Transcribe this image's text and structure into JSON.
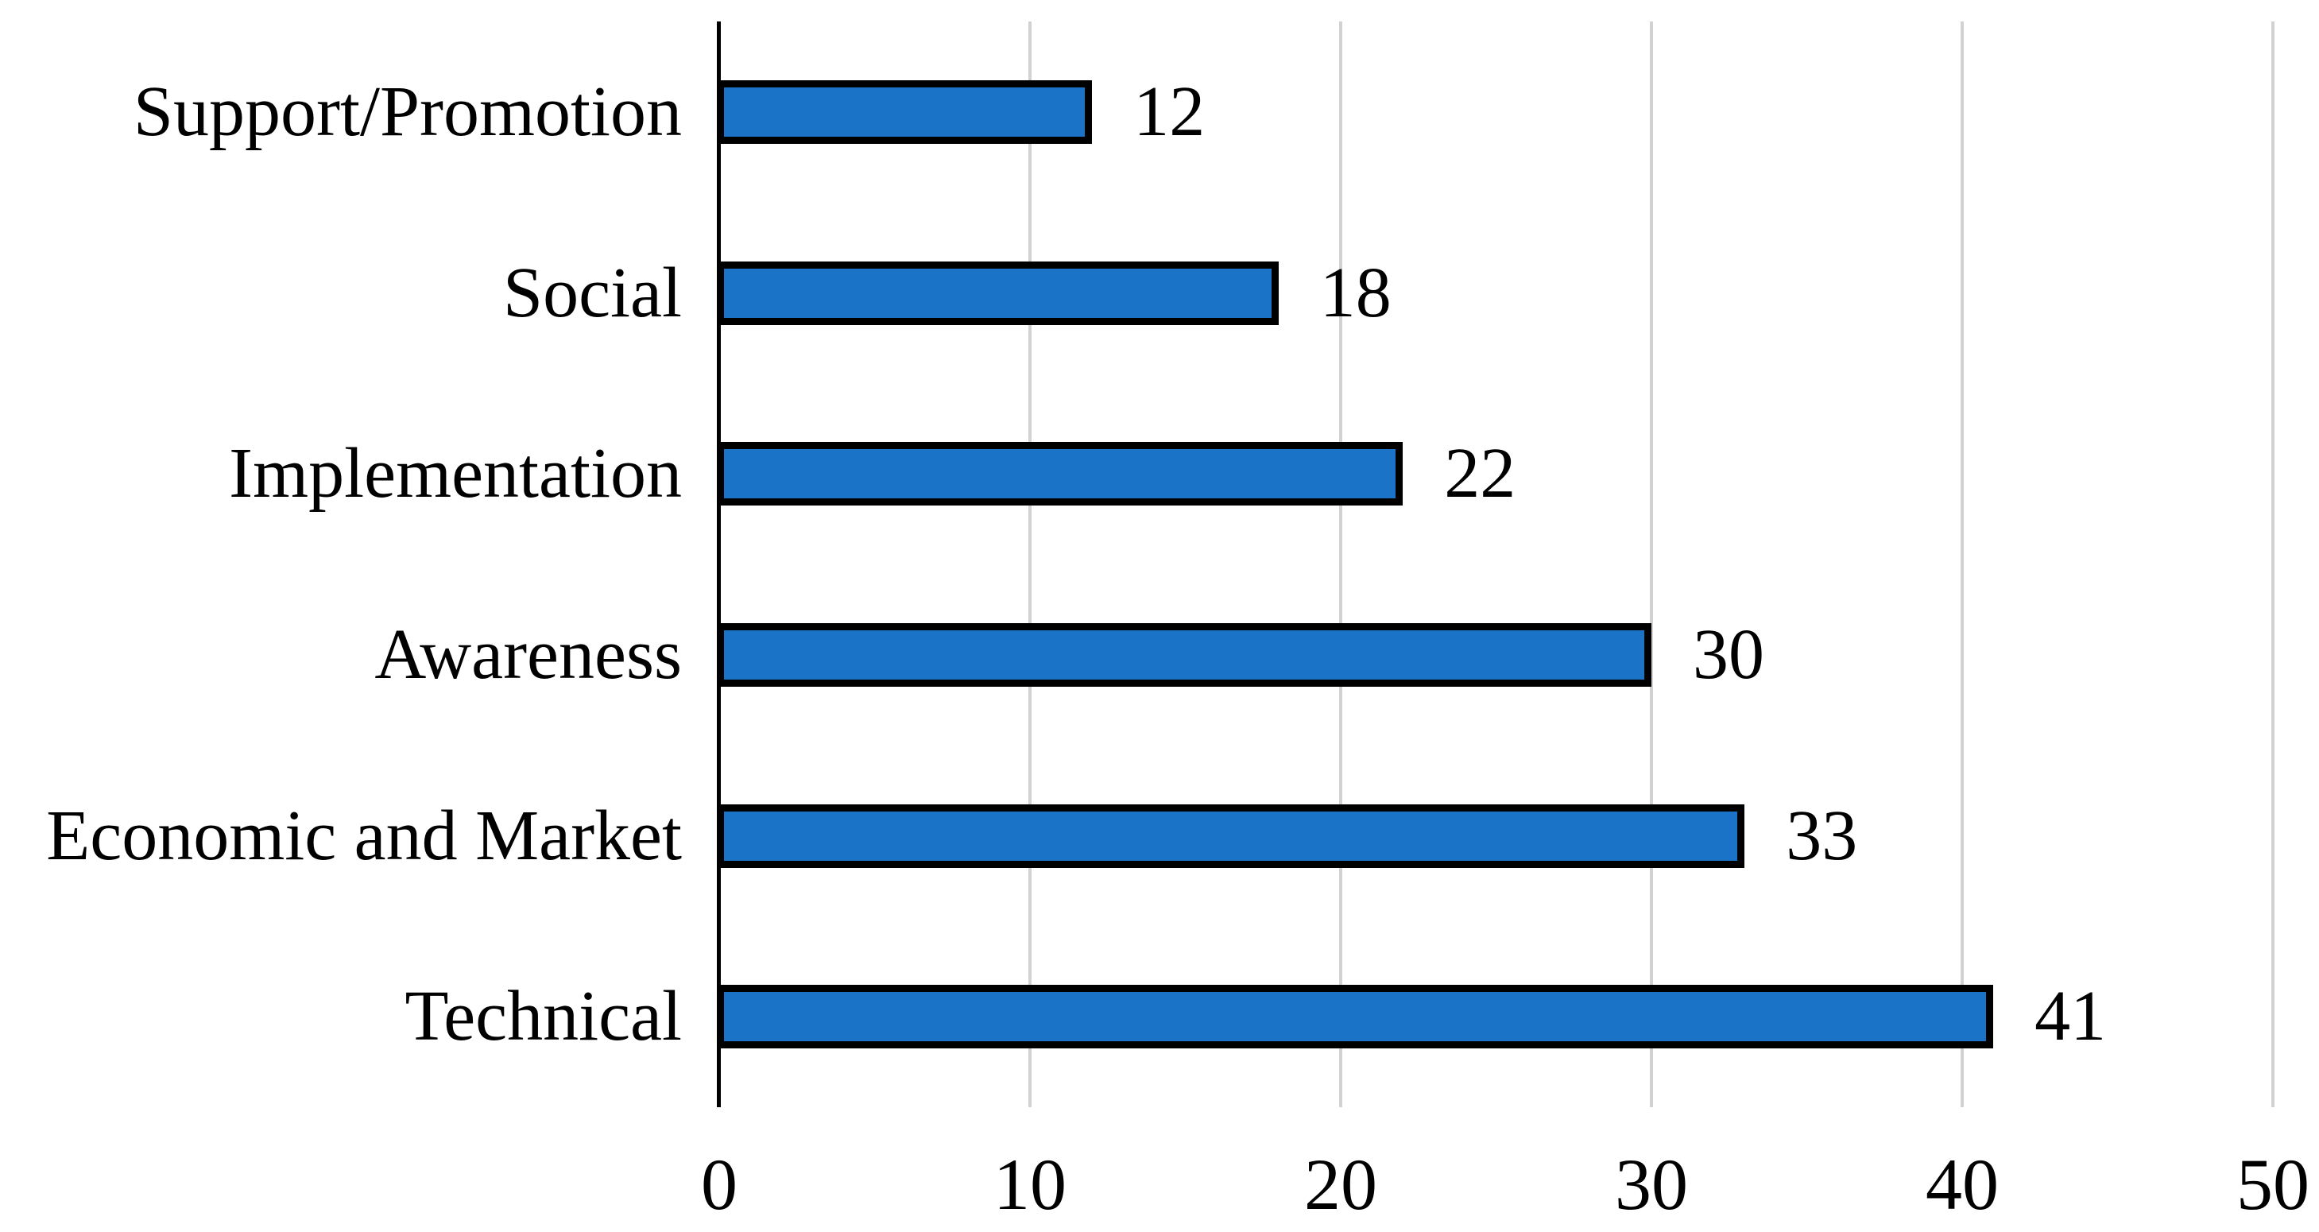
{
  "figure": {
    "background_color": "#FFFFFF"
  },
  "chart_data": {
    "type": "bar",
    "orientation": "horizontal",
    "title": "",
    "xlabel": "",
    "ylabel": "",
    "categories": [
      "Support/Promotion",
      "Social",
      "Implementation",
      "Awareness",
      "Economic and Market",
      "Technical"
    ],
    "values": [
      12,
      18,
      22,
      30,
      33,
      41
    ],
    "data_labels": [
      "12",
      "18",
      "22",
      "30",
      "33",
      "41"
    ],
    "x_ticks": [
      "0",
      "10",
      "20",
      "30",
      "40",
      "50"
    ],
    "x_tick_values": [
      0,
      10,
      20,
      30,
      40,
      50
    ],
    "xlim": [
      0,
      50
    ],
    "grid": "vertical",
    "legend": "none",
    "colors": {
      "bar_fill": "#1B73C8",
      "bar_border": "#000000",
      "gridline": "#D2D2D2",
      "axis_line": "#000000",
      "text": "#000000"
    }
  }
}
